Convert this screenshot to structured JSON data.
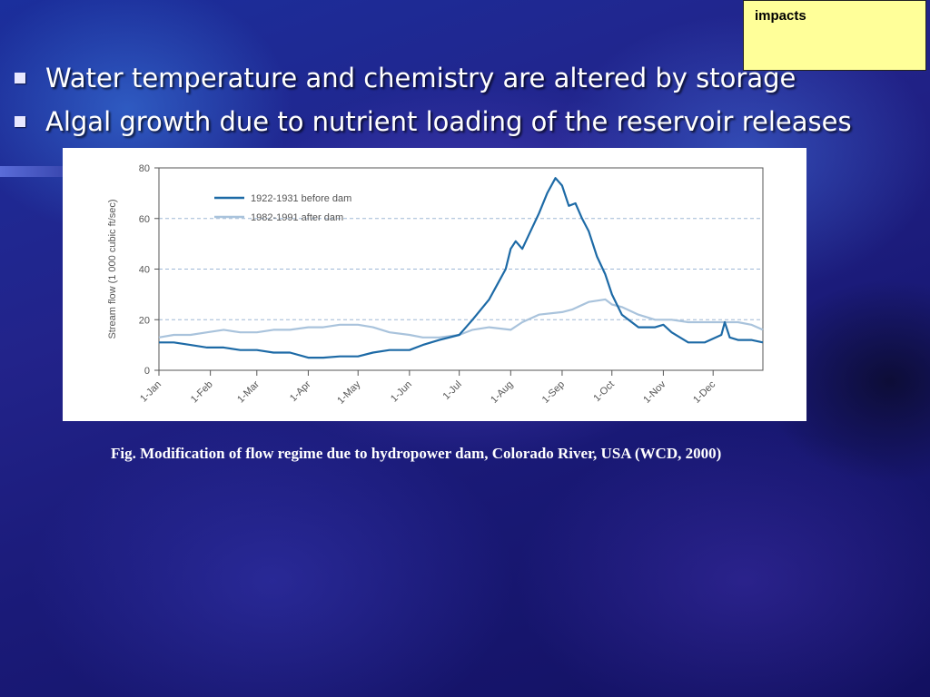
{
  "sticky_note": {
    "text": "impacts"
  },
  "bullets": [
    {
      "text": "Water temperature and chemistry are altered by storage"
    },
    {
      "text": "Algal growth  due to nutrient loading of the reservoir releases"
    }
  ],
  "caption": "Fig. Modification of flow regime due to hydropower dam, Colorado River, USA (WCD, 2000)",
  "colors": {
    "before": "#1d6aa6",
    "after": "#a9c3dc",
    "grid": "#9fb8d6",
    "background_main": "#1f2a95",
    "sticky": "#ffff99"
  },
  "chart_data": {
    "type": "line",
    "title": "",
    "xlabel": "",
    "ylabel": "Stream flow (1 000 cubic ft/sec)",
    "ylim": [
      0,
      80
    ],
    "yticks": [
      "0",
      "20",
      "40",
      "60",
      "80"
    ],
    "x_ticks": [
      "1-Jan",
      "1-Feb",
      "1-Mar",
      "1-Apr",
      "1-May",
      "1-Jun",
      "1-Jul",
      "1-Aug",
      "1-Sep",
      "1-Oct",
      "1-Nov",
      "1-Dec"
    ],
    "x_tick_days": [
      1,
      32,
      60,
      91,
      121,
      152,
      182,
      213,
      244,
      274,
      305,
      335
    ],
    "xlim": [
      1,
      365
    ],
    "grid": "horizontal dashed",
    "legend_position": "top-left",
    "series": [
      {
        "name": "1922-1931 before dam",
        "x": [
          1,
          10,
          20,
          30,
          40,
          50,
          60,
          70,
          80,
          91,
          100,
          110,
          121,
          130,
          140,
          152,
          160,
          170,
          182,
          190,
          200,
          205,
          210,
          213,
          216,
          220,
          225,
          230,
          235,
          240,
          244,
          248,
          252,
          256,
          260,
          265,
          270,
          274,
          280,
          290,
          300,
          305,
          310,
          320,
          330,
          340,
          342,
          345,
          350,
          358,
          365
        ],
        "values": [
          11,
          11,
          10,
          9,
          9,
          8,
          8,
          7,
          7,
          5,
          5,
          5.5,
          5.5,
          7,
          8,
          8,
          10,
          12,
          14,
          20,
          28,
          34,
          40,
          48,
          51,
          48,
          55,
          62,
          70,
          76,
          73,
          65,
          66,
          60,
          55,
          45,
          38,
          30,
          22,
          17,
          17,
          18,
          15,
          11,
          11,
          14,
          19,
          13,
          12,
          12,
          11
        ]
      },
      {
        "name": "1982-1991 after dam",
        "x": [
          1,
          10,
          20,
          30,
          40,
          50,
          60,
          70,
          80,
          91,
          100,
          110,
          121,
          130,
          140,
          152,
          160,
          170,
          182,
          190,
          200,
          213,
          220,
          230,
          244,
          250,
          260,
          270,
          274,
          280,
          290,
          300,
          305,
          310,
          320,
          330,
          340,
          350,
          358,
          365
        ],
        "values": [
          13,
          14,
          14,
          15,
          16,
          15,
          15,
          16,
          16,
          17,
          17,
          18,
          18,
          17,
          15,
          14,
          13,
          13,
          14,
          16,
          17,
          16,
          19,
          22,
          23,
          24,
          27,
          28,
          26,
          25,
          22,
          20,
          20,
          20,
          19,
          19,
          19,
          19,
          18,
          16
        ]
      }
    ]
  }
}
